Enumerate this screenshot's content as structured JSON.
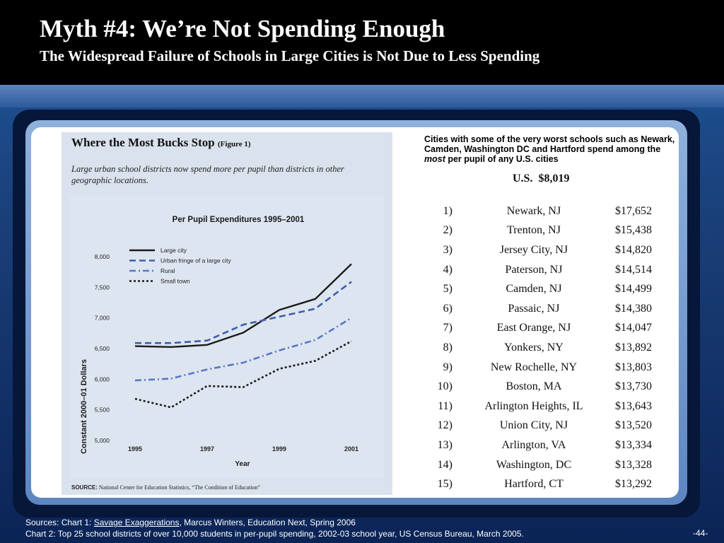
{
  "header": {
    "title": "Myth #4: We’re Not Spending Enough",
    "subtitle": "The Widespread Failure of Schools in Large Cities is Not Due to Less Spending"
  },
  "figure": {
    "heading": "Where the Most Bucks Stop",
    "label": "(Figure 1)",
    "description": "Large urban school districts now spend more per pupil than districts in other geographic locations.",
    "source_label": "SOURCE:",
    "source_text": "National Center for Education Statistics, “The Condition of Education”"
  },
  "chart_data": {
    "type": "line",
    "title": "Per Pupil Expenditures 1995–2001",
    "xlabel": "Year",
    "ylabel": "Constant 2000–01 Dollars",
    "x": [
      1995,
      1996,
      1997,
      1998,
      1999,
      2000,
      2001
    ],
    "x_ticks": [
      "1995",
      "1997",
      "1999",
      "2001"
    ],
    "y_ticks": [
      "5,000",
      "5,500",
      "6,000",
      "6,500",
      "7,000",
      "7,500",
      "8,000"
    ],
    "ylim": [
      5000,
      8000
    ],
    "xlim": [
      1995,
      2001
    ],
    "grid": false,
    "legend_position": "top-left",
    "series": [
      {
        "name": "Large city",
        "style": "solid",
        "color": "#1a1a1a",
        "values": [
          6540,
          6525,
          6560,
          6760,
          7130,
          7310,
          7880
        ]
      },
      {
        "name": "Urban fringe of a large city",
        "style": "dashed",
        "color": "#3f5fa8",
        "values": [
          6590,
          6590,
          6630,
          6890,
          7020,
          7150,
          7590
        ]
      },
      {
        "name": "Rural",
        "style": "dashdot",
        "color": "#5878c4",
        "values": [
          5980,
          6010,
          6160,
          6270,
          6470,
          6640,
          7000
        ]
      },
      {
        "name": "Small town",
        "style": "dotted",
        "color": "#1a1a1a",
        "values": [
          5680,
          5540,
          5890,
          5870,
          6170,
          6300,
          6620
        ]
      }
    ]
  },
  "right_panel": {
    "intro_before": "Cities with some of the very worst schools such as Newark, Camden, Washington DC and Hartford spend among the ",
    "intro_emphasis": "most",
    "intro_after": " per pupil of any U.S. cities",
    "us_label": "U.S.",
    "us_value": "$8,019",
    "cities": [
      {
        "rank": "1)",
        "city": "Newark, NJ",
        "amount": "$17,652"
      },
      {
        "rank": "2)",
        "city": "Trenton, NJ",
        "amount": "$15,438"
      },
      {
        "rank": "3)",
        "city": "Jersey City, NJ",
        "amount": "$14,820"
      },
      {
        "rank": "4)",
        "city": "Paterson, NJ",
        "amount": "$14,514"
      },
      {
        "rank": "5)",
        "city": "Camden, NJ",
        "amount": "$14,499"
      },
      {
        "rank": "6)",
        "city": "Passaic, NJ",
        "amount": "$14,380"
      },
      {
        "rank": "7)",
        "city": "East Orange, NJ",
        "amount": "$14,047"
      },
      {
        "rank": "8)",
        "city": "Yonkers, NY",
        "amount": "$13,892"
      },
      {
        "rank": "9)",
        "city": "New Rochelle, NY",
        "amount": "$13,803"
      },
      {
        "rank": "10)",
        "city": "Boston, MA",
        "amount": "$13,730"
      },
      {
        "rank": "11)",
        "city": "Arlington Heights, IL",
        "amount": "$13,643"
      },
      {
        "rank": "12)",
        "city": "Union City, NJ",
        "amount": "$13,520"
      },
      {
        "rank": "13)",
        "city": "Arlington, VA",
        "amount": "$13,334"
      },
      {
        "rank": "14)",
        "city": "Washington, DC",
        "amount": "$13,328"
      },
      {
        "rank": "15)",
        "city": "Hartford, CT",
        "amount": "$13,292"
      }
    ]
  },
  "footer": {
    "line1_prefix": "Sources: Chart 1: ",
    "line1_link": "Savage Exaggerations",
    "line1_suffix": ", Marcus Winters, Education Next, Spring 2006",
    "line2": "Chart 2: Top 25 school districts of over 10,000 students in per-pupil spending, 2002-03 school year, US Census Bureau, March 2005.",
    "page": "-44-"
  }
}
